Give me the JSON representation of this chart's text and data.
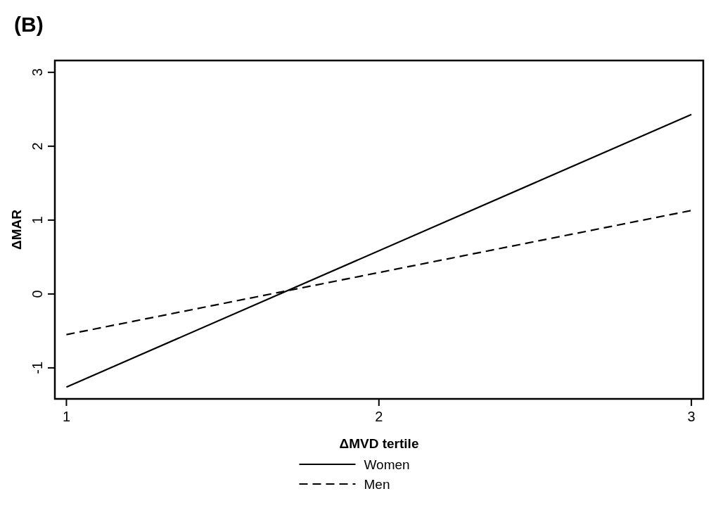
{
  "chart_data": {
    "type": "line",
    "title": "(B)",
    "xlabel": "ΔMVD tertile",
    "ylabel": "ΔMAR",
    "x": [
      1,
      3
    ],
    "xlim": [
      0.963,
      3.038
    ],
    "xticks": [
      1,
      2,
      3
    ],
    "ylim": [
      -1.42,
      3.16
    ],
    "yticks": [
      -1,
      0,
      1,
      2,
      3
    ],
    "series": [
      {
        "name": "Women",
        "color": "#000000",
        "line_style": "solid",
        "values": [
          -1.26,
          2.43
        ]
      },
      {
        "name": "Men",
        "color": "#000000",
        "line_style": "dashed",
        "values": [
          -0.55,
          1.13
        ]
      }
    ],
    "grid": false,
    "legend": "bottom"
  }
}
